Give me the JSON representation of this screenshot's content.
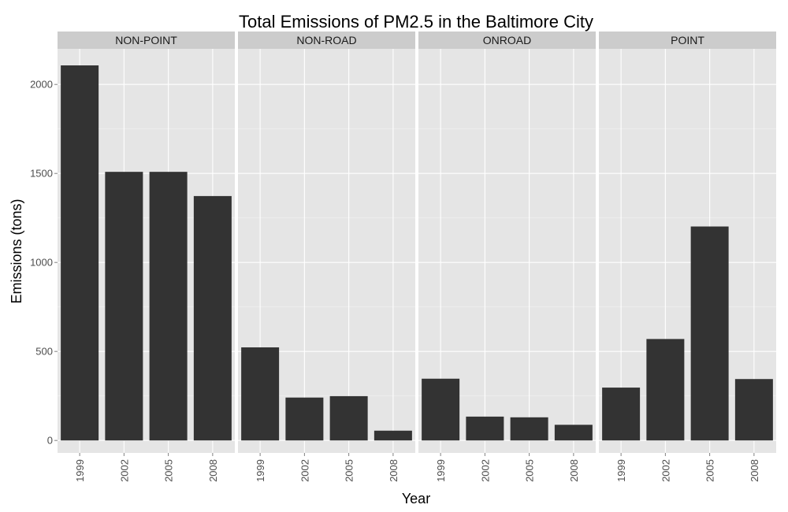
{
  "chart_data": {
    "type": "bar",
    "title": "Total Emissions of PM2.5 in the Baltimore City",
    "xlabel": "Year",
    "ylabel": "Emissions (tons)",
    "ylim": [
      -70,
      2200
    ],
    "yticks": [
      0,
      500,
      1000,
      1500,
      2000
    ],
    "categories": [
      "1999",
      "2002",
      "2005",
      "2008"
    ],
    "panels": [
      {
        "name": "NON-POINT",
        "values": [
          2107,
          1509,
          1509,
          1373
        ]
      },
      {
        "name": "NON-ROAD",
        "values": [
          523,
          241,
          249,
          55
        ]
      },
      {
        "name": "ONROAD",
        "values": [
          347,
          134,
          130,
          88
        ]
      },
      {
        "name": "POINT",
        "values": [
          297,
          570,
          1202,
          345
        ]
      }
    ],
    "bar_color": "#333333",
    "panel_background": "#e5e5e5",
    "grid_color": "#ffffff",
    "strip_background": "#cccccc",
    "grid": true
  }
}
